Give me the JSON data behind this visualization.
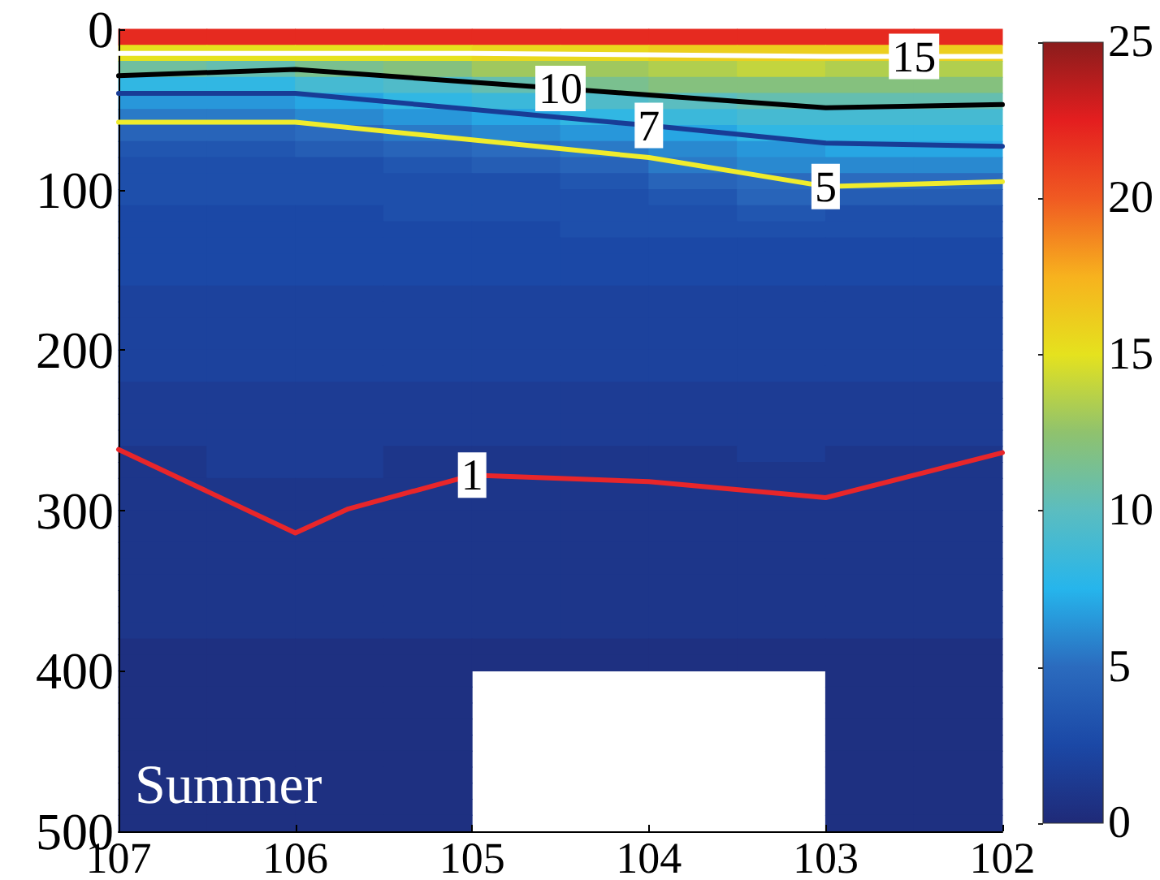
{
  "chart_data": [
    {
      "type": "heatmap",
      "categories": [
        null,
        null,
        null,
        null,
        null,
        null,
        null,
        null,
        null,
        null
      ],
      "y_categories": [
        null,
        null,
        null,
        null,
        null,
        null,
        null,
        null,
        null,
        null,
        null,
        null,
        null,
        null,
        null,
        null,
        null,
        null,
        null,
        null,
        null,
        null,
        null,
        null,
        null,
        null,
        null,
        null,
        null,
        null,
        null,
        null,
        null,
        null,
        null,
        null,
        null,
        null,
        null,
        null,
        null,
        null,
        null,
        null,
        null,
        null,
        null,
        null,
        null,
        null
      ],
      "cells": [
        [
          22,
          22,
          22,
          22,
          22,
          22,
          22,
          22,
          22,
          22
        ],
        [
          15,
          15,
          15,
          15,
          15.5,
          15.5,
          16,
          16,
          16,
          16
        ],
        [
          11,
          10.5,
          11.5,
          12,
          13,
          13,
          13.5,
          14,
          13.5,
          13.5
        ],
        [
          8,
          8,
          9,
          9.5,
          10.5,
          11.5,
          12,
          12,
          12,
          12
        ],
        [
          6.5,
          6.5,
          7,
          8,
          8.5,
          9.5,
          10,
          10.5,
          10.5,
          10.5
        ],
        [
          5.5,
          5.5,
          6,
          6.5,
          7,
          8,
          8.5,
          9,
          9,
          9
        ],
        [
          4.5,
          4.5,
          5,
          5.5,
          6,
          6.5,
          7,
          8,
          8,
          8
        ],
        [
          3.5,
          3.5,
          4,
          4.5,
          5,
          5.5,
          6,
          6.5,
          7,
          7
        ],
        [
          3,
          3,
          3,
          3.5,
          4,
          4.5,
          5.5,
          6,
          6,
          6
        ],
        [
          3,
          3,
          3,
          3,
          3,
          3.5,
          4.5,
          5,
          5,
          5
        ],
        [
          3,
          3,
          3,
          3,
          3,
          3,
          3.5,
          4.5,
          4,
          4
        ],
        [
          2.5,
          2.5,
          2.5,
          3,
          3,
          3,
          3,
          3.5,
          3,
          3
        ],
        [
          2.5,
          2.5,
          2.5,
          2.5,
          2.5,
          3,
          3,
          3,
          3,
          3
        ],
        [
          2.5,
          2.5,
          2.5,
          2.5,
          2.5,
          2.5,
          2.5,
          2.5,
          2.5,
          2.5
        ],
        [
          2.5,
          2.5,
          2.5,
          2.5,
          2.5,
          2.5,
          2.5,
          2.5,
          2.5,
          2.5
        ],
        [
          2.5,
          2.5,
          2.5,
          2.5,
          2.5,
          2.5,
          2.5,
          2.5,
          2.5,
          2.5
        ],
        [
          2,
          2,
          2,
          2,
          2,
          2,
          2,
          2,
          2,
          2
        ],
        [
          2,
          2,
          2,
          2,
          2,
          2,
          2,
          2,
          2,
          2
        ],
        [
          2,
          2,
          2,
          2,
          2,
          2,
          2,
          2,
          2,
          2
        ],
        [
          2,
          2,
          2,
          2,
          2,
          2,
          2,
          2,
          2,
          2
        ],
        [
          2,
          2,
          2,
          2,
          2,
          2,
          2,
          2,
          2,
          2
        ],
        [
          2,
          2,
          2,
          2,
          2,
          2,
          2,
          2,
          2,
          2
        ],
        [
          1.5,
          1.5,
          1.5,
          1.5,
          1.5,
          1.5,
          1.5,
          1.5,
          1.5,
          1.5
        ],
        [
          1.5,
          1.5,
          1.5,
          1.5,
          1.5,
          1.5,
          1.5,
          1.5,
          1.5,
          1.5
        ],
        [
          1.5,
          1.5,
          1.5,
          1.5,
          1.5,
          1.5,
          1.5,
          1.5,
          1.5,
          1.5
        ],
        [
          1.5,
          1.5,
          1.5,
          1.5,
          1.5,
          1.5,
          1.5,
          1.5,
          1.5,
          1.5
        ],
        [
          1,
          1.5,
          1.5,
          1,
          1,
          1,
          1,
          1.5,
          1,
          1
        ],
        [
          1,
          1.5,
          1.5,
          1,
          1,
          1,
          1,
          1,
          1,
          1
        ],
        [
          1,
          1,
          1,
          1,
          1,
          1,
          1,
          1,
          1,
          1
        ],
        [
          1,
          1,
          1,
          1,
          1,
          1,
          1,
          1,
          1,
          1
        ],
        [
          1,
          1,
          1,
          1,
          1,
          1,
          1,
          1,
          1,
          1
        ],
        [
          1,
          1,
          1,
          1,
          1,
          1,
          1,
          1,
          1,
          1
        ],
        [
          1,
          1,
          1,
          1,
          1,
          1,
          1,
          1,
          1,
          1
        ],
        [
          1,
          1,
          1,
          1,
          1,
          1,
          1,
          1,
          1,
          1
        ],
        [
          1,
          1,
          1,
          1,
          1,
          1,
          1,
          1,
          1,
          1
        ],
        [
          1,
          1,
          1,
          1,
          1,
          1,
          1,
          1,
          1,
          1
        ],
        [
          1,
          1,
          1,
          1,
          1,
          1,
          1,
          1,
          1,
          1
        ],
        [
          1,
          1,
          1,
          1,
          1,
          1,
          1,
          1,
          1,
          1
        ],
        [
          0.5,
          0.5,
          0.5,
          0.5,
          0.5,
          0.5,
          0.5,
          0.5,
          0.5,
          0.5
        ],
        [
          0.5,
          0.5,
          0.5,
          0.5,
          0.5,
          0.5,
          0.5,
          0.5,
          0.5,
          0.5
        ],
        [
          0.5,
          0.5,
          0.5,
          0.5,
          null,
          null,
          null,
          null,
          0.5,
          0.5
        ],
        [
          0.5,
          0.5,
          0.5,
          0.5,
          null,
          null,
          null,
          null,
          0.5,
          0.5
        ],
        [
          0.5,
          0.5,
          0.5,
          0.5,
          null,
          null,
          null,
          null,
          0.5,
          0.5
        ],
        [
          0.5,
          0.5,
          0.5,
          0.5,
          null,
          null,
          null,
          null,
          0.5,
          0.5
        ],
        [
          0.5,
          0.5,
          0.5,
          0.5,
          null,
          null,
          null,
          null,
          0.5,
          0.5
        ],
        [
          0.5,
          0.5,
          0.5,
          0.5,
          null,
          null,
          null,
          null,
          0.5,
          0.5
        ],
        [
          0.5,
          0.5,
          0.5,
          0.5,
          null,
          null,
          null,
          null,
          0.5,
          0.5
        ],
        [
          0.5,
          0.5,
          0.5,
          0.5,
          null,
          null,
          null,
          null,
          0.5,
          0.5
        ],
        [
          0.5,
          0.5,
          0.5,
          0.5,
          null,
          null,
          null,
          null,
          0.5,
          0.5
        ],
        [
          0.5,
          0.5,
          0.5,
          0.5,
          null,
          null,
          null,
          null,
          0.5,
          0.5
        ]
      ],
      "clim": [
        0,
        25
      ],
      "cticks": [
        0,
        5,
        10,
        15,
        20,
        25
      ]
    },
    {
      "type": "line",
      "xlim": [
        107,
        102
      ],
      "xticks": [
        107,
        106,
        105,
        104,
        103,
        102
      ],
      "ylim": [
        500,
        0
      ],
      "yticks": [
        0,
        100,
        200,
        300,
        400,
        500
      ],
      "marker": "none",
      "line_style": "solid",
      "series": [
        {
          "name": "1",
          "color": "#e8262a",
          "x": [
            107,
            106,
            105.7,
            105,
            104,
            103,
            102
          ],
          "values": [
            262,
            314,
            299,
            278,
            282,
            292,
            264
          ]
        },
        {
          "name": "5",
          "color": "#f0ec2c",
          "x": [
            107,
            106,
            105,
            104,
            103,
            102
          ],
          "values": [
            58,
            58,
            69,
            80,
            98,
            95
          ]
        },
        {
          "name": "7",
          "color": "#183c96",
          "x": [
            107,
            106,
            105,
            104,
            103,
            102
          ],
          "values": [
            40,
            40,
            50,
            60,
            71,
            73
          ]
        },
        {
          "name": "10",
          "color": "#000000",
          "x": [
            107,
            106,
            105,
            104.5,
            104,
            103,
            102
          ],
          "values": [
            29,
            25,
            33,
            37,
            41,
            49,
            47
          ]
        },
        {
          "name": "15",
          "color": "#ffffff",
          "x": [
            107,
            106,
            105,
            104,
            103,
            102.5,
            102
          ],
          "values": [
            15,
            15,
            15,
            16,
            17,
            17,
            17
          ]
        }
      ],
      "annotations": [
        "Summer"
      ]
    }
  ]
}
